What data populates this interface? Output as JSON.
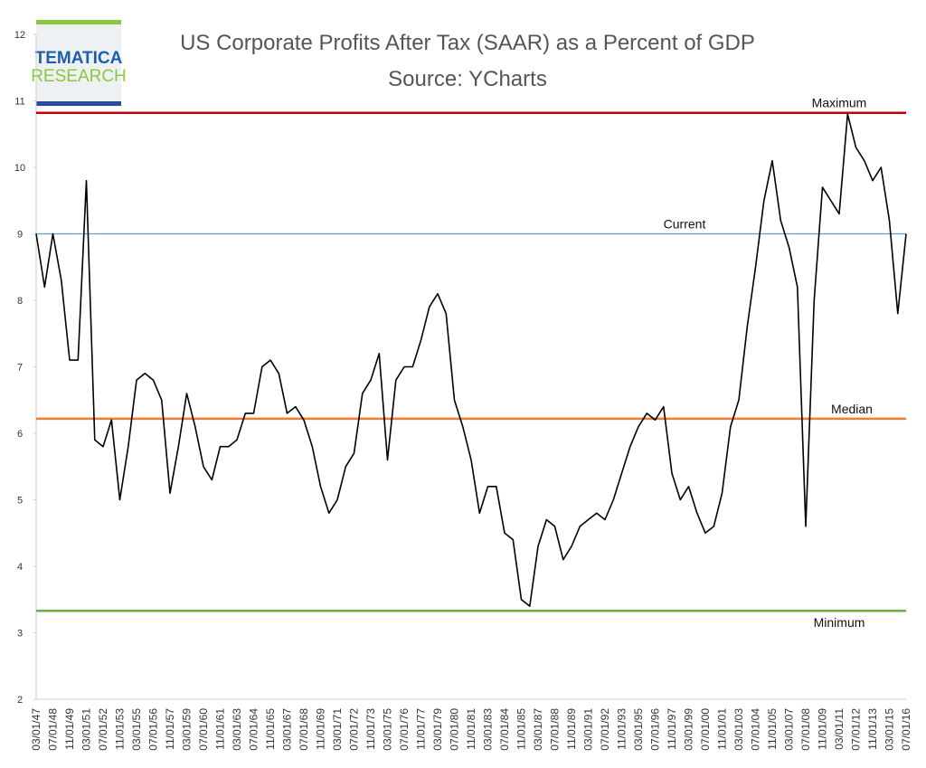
{
  "logo": {
    "line1": "TEMATICA",
    "line2": "RESEARCH"
  },
  "chart_data": {
    "type": "line",
    "title": "US Corporate Profits After Tax (SAAR) as a Percent of GDP",
    "subtitle": "Source: YCharts",
    "color": "#000000",
    "categories": [
      "03/01/47",
      null,
      "07/01/48",
      null,
      "11/01/49",
      null,
      "03/01/51",
      null,
      "07/01/52",
      null,
      "11/01/53",
      null,
      "03/01/55",
      null,
      "07/01/56",
      null,
      "11/01/57",
      null,
      "03/01/59",
      null,
      "07/01/60",
      null,
      "11/01/61",
      null,
      "03/01/63",
      null,
      "07/01/64",
      null,
      "11/01/65",
      null,
      "03/01/67",
      null,
      "07/01/68",
      null,
      "11/01/69",
      null,
      "03/01/71",
      null,
      "07/01/72",
      null,
      "11/01/73",
      null,
      "03/01/75",
      null,
      "07/01/76",
      null,
      "11/01/77",
      null,
      "03/01/79",
      null,
      "07/01/80",
      null,
      "11/01/81",
      null,
      "03/01/83",
      null,
      "07/01/84",
      null,
      "11/01/85",
      null,
      "03/01/87",
      null,
      "07/01/88",
      null,
      "11/01/89",
      null,
      "03/01/91",
      null,
      "07/01/92",
      null,
      "11/01/93",
      null,
      "03/01/95",
      null,
      "07/01/96",
      null,
      "11/01/97",
      null,
      "03/01/99",
      null,
      "07/01/00",
      null,
      "11/01/01",
      null,
      "03/01/03",
      null,
      "07/01/04",
      null,
      "11/01/05",
      null,
      "03/01/07",
      null,
      "07/01/08",
      null,
      "11/01/09",
      null,
      "03/01/11",
      null,
      "07/01/12",
      null,
      "11/01/13",
      null,
      "03/01/15",
      null,
      "07/01/16"
    ],
    "values": [
      9.0,
      8.2,
      9.0,
      8.3,
      7.1,
      7.1,
      9.8,
      5.9,
      5.8,
      6.2,
      5.0,
      5.8,
      6.8,
      6.9,
      6.8,
      6.5,
      5.1,
      5.8,
      6.6,
      6.1,
      5.5,
      5.3,
      5.8,
      5.8,
      5.9,
      6.3,
      6.3,
      7.0,
      7.1,
      6.9,
      6.3,
      6.4,
      6.2,
      5.8,
      5.2,
      4.8,
      5.0,
      5.5,
      5.7,
      6.6,
      6.8,
      7.2,
      5.6,
      6.8,
      7.0,
      7.0,
      7.4,
      7.9,
      8.1,
      7.8,
      6.5,
      6.1,
      5.6,
      4.8,
      5.2,
      5.2,
      4.5,
      4.4,
      3.5,
      3.4,
      4.3,
      4.7,
      4.6,
      4.1,
      4.3,
      4.6,
      4.7,
      4.8,
      4.7,
      5.0,
      5.4,
      5.8,
      6.1,
      6.3,
      6.2,
      6.4,
      5.4,
      5.0,
      5.2,
      4.8,
      4.5,
      4.6,
      5.1,
      6.1,
      6.5,
      7.6,
      8.5,
      9.5,
      10.1,
      9.2,
      8.8,
      8.2,
      4.6,
      8.0,
      9.7,
      9.5,
      9.3,
      10.8,
      10.3,
      10.1,
      9.8,
      10.0,
      9.2,
      7.8,
      9.0
    ],
    "ylim": [
      2,
      12
    ],
    "yticks": [
      2,
      3,
      4,
      5,
      6,
      7,
      8,
      9,
      10,
      11,
      12
    ],
    "reference_lines": [
      {
        "name": "Maximum",
        "value": 10.82,
        "color": "#c00000"
      },
      {
        "name": "Current",
        "value": 9.0,
        "color": "#5b9bd5"
      },
      {
        "name": "Median",
        "value": 6.22,
        "color": "#ed7d31"
      },
      {
        "name": "Minimum",
        "value": 3.33,
        "color": "#70ad47"
      }
    ]
  }
}
